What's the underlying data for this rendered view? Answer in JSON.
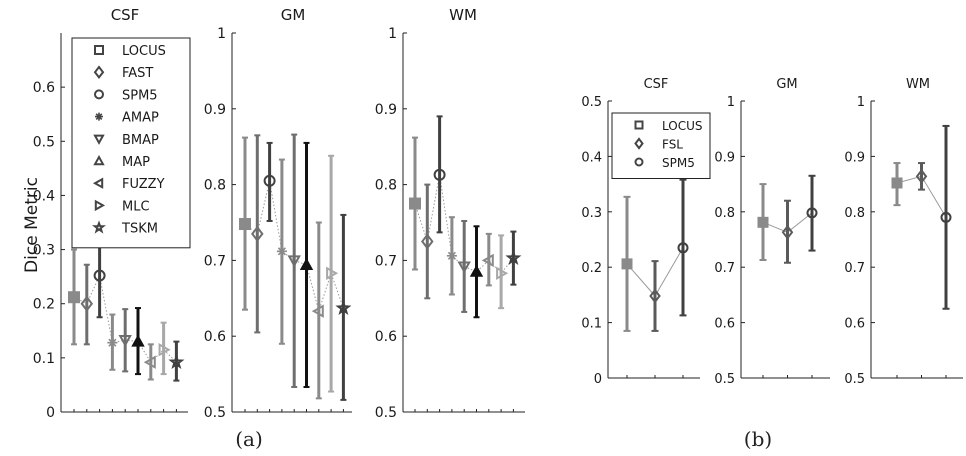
{
  "figure": {
    "subcaptions": [
      "(a)",
      "(b)"
    ],
    "ylabel": "Dice Metric"
  },
  "legends": [
    {
      "entries": [
        {
          "name": "LOCUS",
          "marker": "square"
        },
        {
          "name": "FAST",
          "marker": "diamond"
        },
        {
          "name": "SPM5",
          "marker": "circle"
        },
        {
          "name": "AMAP",
          "marker": "asterisk"
        },
        {
          "name": "BMAP",
          "marker": "triangle-down"
        },
        {
          "name": "MAP",
          "marker": "triangle-up"
        },
        {
          "name": "FUZZY",
          "marker": "triangle-left"
        },
        {
          "name": "MLC",
          "marker": "triangle-right"
        },
        {
          "name": "TSKM",
          "marker": "star"
        }
      ]
    },
    {
      "entries": [
        {
          "name": "LOCUS",
          "marker": "square"
        },
        {
          "name": "FSL",
          "marker": "diamond"
        },
        {
          "name": "SPM5",
          "marker": "circle"
        }
      ]
    }
  ],
  "chart_data": [
    {
      "type": "errorbar",
      "title": "CSF",
      "ylabel": "Dice Metric",
      "ylim": [
        0,
        0.7
      ],
      "yticks": [
        "0",
        "0.1",
        "0.2",
        "0.3",
        "0.4",
        "0.5",
        "0.6"
      ],
      "points": [
        {
          "method": "LOCUS",
          "mean": 0.212,
          "lower": 0.125,
          "upper": 0.3,
          "color": "#8a8a8a"
        },
        {
          "method": "FAST",
          "mean": 0.2,
          "lower": 0.125,
          "upper": 0.272,
          "color": "#6e6e6e"
        },
        {
          "method": "SPM5",
          "mean": 0.252,
          "lower": 0.175,
          "upper": 0.33,
          "color": "#404040"
        },
        {
          "method": "AMAP",
          "mean": 0.128,
          "lower": 0.078,
          "upper": 0.18,
          "color": "#8a8a8a"
        },
        {
          "method": "BMAP",
          "mean": 0.133,
          "lower": 0.075,
          "upper": 0.19,
          "color": "#6e6e6e"
        },
        {
          "method": "MAP",
          "mean": 0.13,
          "lower": 0.07,
          "upper": 0.192,
          "color": "#111111"
        },
        {
          "method": "FUZZY",
          "mean": 0.092,
          "lower": 0.06,
          "upper": 0.125,
          "color": "#8a8a8a"
        },
        {
          "method": "MLC",
          "mean": 0.115,
          "lower": 0.07,
          "upper": 0.165,
          "color": "#a8a8a8"
        },
        {
          "method": "TSKM",
          "mean": 0.092,
          "lower": 0.058,
          "upper": 0.13,
          "color": "#404040"
        }
      ]
    },
    {
      "type": "errorbar",
      "title": "GM",
      "ylim": [
        0.5,
        1
      ],
      "yticks": [
        "0.5",
        "0.6",
        "0.7",
        "0.8",
        "0.9",
        "1"
      ],
      "points": [
        {
          "method": "LOCUS",
          "mean": 0.748,
          "lower": 0.635,
          "upper": 0.862,
          "color": "#8a8a8a"
        },
        {
          "method": "FAST",
          "mean": 0.735,
          "lower": 0.605,
          "upper": 0.865,
          "color": "#6e6e6e"
        },
        {
          "method": "SPM5",
          "mean": 0.805,
          "lower": 0.752,
          "upper": 0.855,
          "color": "#404040"
        },
        {
          "method": "AMAP",
          "mean": 0.712,
          "lower": 0.59,
          "upper": 0.833,
          "color": "#8a8a8a"
        },
        {
          "method": "BMAP",
          "mean": 0.7,
          "lower": 0.533,
          "upper": 0.866,
          "color": "#6e6e6e"
        },
        {
          "method": "MAP",
          "mean": 0.694,
          "lower": 0.533,
          "upper": 0.855,
          "color": "#111111"
        },
        {
          "method": "FUZZY",
          "mean": 0.633,
          "lower": 0.518,
          "upper": 0.75,
          "color": "#8a8a8a"
        },
        {
          "method": "MLC",
          "mean": 0.683,
          "lower": 0.527,
          "upper": 0.838,
          "color": "#a8a8a8"
        },
        {
          "method": "TSKM",
          "mean": 0.637,
          "lower": 0.516,
          "upper": 0.76,
          "color": "#404040"
        }
      ]
    },
    {
      "type": "errorbar",
      "title": "WM",
      "ylim": [
        0.5,
        1
      ],
      "yticks": [
        "0.5",
        "0.6",
        "0.7",
        "0.8",
        "0.9",
        "1"
      ],
      "points": [
        {
          "method": "LOCUS",
          "mean": 0.775,
          "lower": 0.688,
          "upper": 0.862,
          "color": "#8a8a8a"
        },
        {
          "method": "FAST",
          "mean": 0.725,
          "lower": 0.65,
          "upper": 0.8,
          "color": "#6e6e6e"
        },
        {
          "method": "SPM5",
          "mean": 0.813,
          "lower": 0.737,
          "upper": 0.89,
          "color": "#404040"
        },
        {
          "method": "AMAP",
          "mean": 0.706,
          "lower": 0.655,
          "upper": 0.757,
          "color": "#8a8a8a"
        },
        {
          "method": "BMAP",
          "mean": 0.692,
          "lower": 0.632,
          "upper": 0.752,
          "color": "#6e6e6e"
        },
        {
          "method": "MAP",
          "mean": 0.685,
          "lower": 0.625,
          "upper": 0.745,
          "color": "#111111"
        },
        {
          "method": "FUZZY",
          "mean": 0.7,
          "lower": 0.667,
          "upper": 0.735,
          "color": "#8a8a8a"
        },
        {
          "method": "MLC",
          "mean": 0.683,
          "lower": 0.637,
          "upper": 0.733,
          "color": "#a8a8a8"
        },
        {
          "method": "TSKM",
          "mean": 0.703,
          "lower": 0.668,
          "upper": 0.738,
          "color": "#404040"
        }
      ]
    },
    {
      "type": "errorbar",
      "title": "CSF",
      "ylim": [
        0,
        0.5
      ],
      "yticks": [
        "0",
        "0.1",
        "0.2",
        "0.3",
        "0.4",
        "0.5"
      ],
      "points": [
        {
          "method": "LOCUS",
          "mean": 0.206,
          "lower": 0.085,
          "upper": 0.327,
          "color": "#8a8a8a"
        },
        {
          "method": "FSL",
          "mean": 0.148,
          "lower": 0.085,
          "upper": 0.211,
          "color": "#5a5a5a"
        },
        {
          "method": "SPM5",
          "mean": 0.235,
          "lower": 0.113,
          "upper": 0.358,
          "color": "#404040"
        }
      ]
    },
    {
      "type": "errorbar",
      "title": "GM",
      "ylim": [
        0.5,
        1
      ],
      "yticks": [
        "0.5",
        "0.6",
        "0.7",
        "0.8",
        "0.9",
        "1"
      ],
      "points": [
        {
          "method": "LOCUS",
          "mean": 0.781,
          "lower": 0.713,
          "upper": 0.85,
          "color": "#8a8a8a"
        },
        {
          "method": "FSL",
          "mean": 0.763,
          "lower": 0.708,
          "upper": 0.82,
          "color": "#5a5a5a"
        },
        {
          "method": "SPM5",
          "mean": 0.798,
          "lower": 0.73,
          "upper": 0.865,
          "color": "#404040"
        }
      ]
    },
    {
      "type": "errorbar",
      "title": "WM",
      "ylim": [
        0.5,
        1
      ],
      "yticks": [
        "0.5",
        "0.6",
        "0.7",
        "0.8",
        "0.9",
        "1"
      ],
      "points": [
        {
          "method": "LOCUS",
          "mean": 0.852,
          "lower": 0.812,
          "upper": 0.888,
          "color": "#8a8a8a"
        },
        {
          "method": "FSL",
          "mean": 0.864,
          "lower": 0.84,
          "upper": 0.888,
          "color": "#5a5a5a"
        },
        {
          "method": "SPM5",
          "mean": 0.79,
          "lower": 0.625,
          "upper": 0.955,
          "color": "#404040"
        }
      ]
    }
  ]
}
